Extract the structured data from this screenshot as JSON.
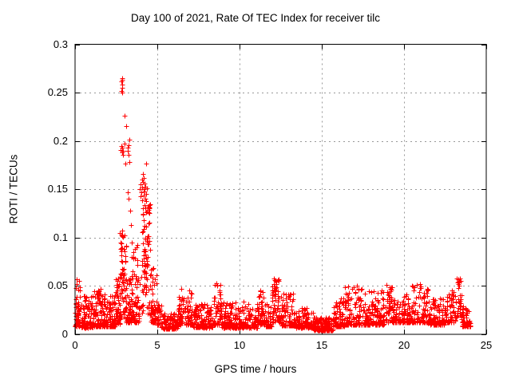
{
  "chart_data": {
    "type": "scatter",
    "title": "Day 100 of 2021, Rate Of TEC Index for receiver tilc",
    "xlabel": "GPS time / hours",
    "ylabel": "ROTI / TECUs",
    "xlim": [
      0,
      25
    ],
    "ylim": [
      0,
      0.3
    ],
    "xticks": [
      0,
      5,
      10,
      15,
      20,
      25
    ],
    "yticks": [
      0,
      0.05,
      0.1,
      0.15,
      0.2,
      0.25,
      0.3
    ],
    "ytick_labels": [
      "0",
      "0.05",
      "0.1",
      "0.15",
      "0.2",
      "0.25",
      "0.3"
    ],
    "xtick_labels": [
      "0",
      "5",
      "10",
      "15",
      "20",
      "25"
    ],
    "grid": "dashed gray at every labeled tick, mirrored inward tick marks on all four sides",
    "legend": "none",
    "marker": "plus",
    "marker_color": "#ff0000",
    "frame_color": "#000000",
    "grid_color": "#999999",
    "background_color": "#ffffff",
    "data_time_range_hours": [
      0,
      24.05
    ],
    "description": "Rate of TEC index vs GPS time; quiet background band ~0.005-0.05 TECU all day; strong ionospheric spike near 2.8-3.1 h peaking 0.265; secondary cluster 0.13-0.18 near 4.0-4.5 h; quietest period 14.5-15.7 h; small detached cluster ~0.05 near 23.3 h",
    "seed": 1337,
    "bands": [
      [
        0.0,
        0.35,
        60,
        0.008,
        0.052,
        2.0
      ],
      [
        0.35,
        1.15,
        110,
        0.007,
        0.04,
        2.4
      ],
      [
        1.15,
        1.75,
        85,
        0.008,
        0.046,
        2.2
      ],
      [
        1.35,
        1.55,
        12,
        0.03,
        0.052,
        1.3
      ],
      [
        1.75,
        2.45,
        100,
        0.008,
        0.044,
        2.4
      ],
      [
        2.45,
        2.75,
        55,
        0.01,
        0.058,
        1.8
      ],
      [
        2.7,
        3.1,
        55,
        0.015,
        0.108,
        1.2
      ],
      [
        3.1,
        3.95,
        100,
        0.012,
        0.058,
        1.8
      ],
      [
        3.4,
        4.0,
        12,
        0.05,
        0.096,
        1.2
      ],
      [
        4.05,
        4.6,
        80,
        0.02,
        0.135,
        1.0
      ],
      [
        4.6,
        5.0,
        55,
        0.012,
        0.07,
        1.7
      ],
      [
        5.0,
        5.25,
        28,
        0.01,
        0.034,
        2.0
      ],
      [
        5.25,
        6.25,
        115,
        0.006,
        0.022,
        2.0
      ],
      [
        6.25,
        6.65,
        45,
        0.01,
        0.048,
        1.9
      ],
      [
        6.65,
        7.15,
        55,
        0.01,
        0.046,
        2.2
      ],
      [
        7.15,
        8.4,
        135,
        0.007,
        0.032,
        2.2
      ],
      [
        8.4,
        8.9,
        60,
        0.01,
        0.054,
        2.2
      ],
      [
        8.9,
        11.1,
        230,
        0.007,
        0.034,
        2.5
      ],
      [
        11.1,
        11.5,
        45,
        0.01,
        0.046,
        2.0
      ],
      [
        11.5,
        11.95,
        45,
        0.008,
        0.032,
        2.2
      ],
      [
        11.95,
        12.45,
        60,
        0.012,
        0.058,
        1.5
      ],
      [
        12.45,
        13.45,
        105,
        0.009,
        0.042,
        2.3
      ],
      [
        13.45,
        14.5,
        115,
        0.007,
        0.027,
        2.3
      ],
      [
        14.5,
        15.7,
        140,
        0.004,
        0.018,
        2.0
      ],
      [
        15.2,
        15.45,
        40,
        0.006,
        0.014,
        1.5
      ],
      [
        15.7,
        16.4,
        80,
        0.008,
        0.038,
        2.2
      ],
      [
        16.4,
        17.5,
        115,
        0.01,
        0.05,
        2.3
      ],
      [
        17.5,
        18.9,
        150,
        0.01,
        0.046,
        2.4
      ],
      [
        18.9,
        19.3,
        45,
        0.012,
        0.052,
        2.0
      ],
      [
        19.3,
        20.5,
        125,
        0.012,
        0.042,
        2.2
      ],
      [
        20.5,
        21.45,
        95,
        0.012,
        0.052,
        2.3
      ],
      [
        21.45,
        22.45,
        105,
        0.01,
        0.038,
        2.3
      ],
      [
        22.45,
        23.15,
        75,
        0.012,
        0.046,
        2.0
      ],
      [
        23.15,
        23.5,
        25,
        0.018,
        0.042,
        1.5
      ],
      [
        23.22,
        23.45,
        9,
        0.046,
        0.058,
        1.0
      ],
      [
        23.5,
        24.05,
        60,
        0.008,
        0.03,
        2.3
      ]
    ],
    "key_points": [
      [
        2.82,
        0.262
      ],
      [
        2.84,
        0.265
      ],
      [
        2.86,
        0.258
      ],
      [
        2.88,
        0.263
      ],
      [
        2.85,
        0.255
      ],
      [
        2.83,
        0.252
      ],
      [
        2.87,
        0.25
      ],
      [
        3.0,
        0.226
      ],
      [
        3.1,
        0.215
      ],
      [
        2.78,
        0.191
      ],
      [
        2.81,
        0.195
      ],
      [
        2.84,
        0.188
      ],
      [
        2.87,
        0.193
      ],
      [
        2.9,
        0.19
      ],
      [
        2.93,
        0.186
      ],
      [
        3.02,
        0.197
      ],
      [
        3.18,
        0.193
      ],
      [
        3.22,
        0.19
      ],
      [
        3.26,
        0.186
      ],
      [
        3.28,
        0.201
      ],
      [
        3.24,
        0.196
      ],
      [
        3.05,
        0.177
      ],
      [
        3.3,
        0.178
      ],
      [
        4.3,
        0.177
      ],
      [
        3.2,
        0.147
      ],
      [
        3.26,
        0.14
      ],
      [
        3.35,
        0.128
      ],
      [
        3.4,
        0.113
      ],
      [
        2.85,
        0.107
      ],
      [
        2.9,
        0.101
      ],
      [
        2.82,
        0.094
      ],
      [
        2.95,
        0.088
      ],
      [
        2.8,
        0.082
      ],
      [
        2.88,
        0.075
      ],
      [
        2.97,
        0.068
      ],
      [
        2.83,
        0.062
      ],
      [
        3.45,
        0.095
      ],
      [
        3.55,
        0.085
      ],
      [
        3.65,
        0.078
      ],
      [
        3.75,
        0.09
      ],
      [
        3.5,
        0.065
      ],
      [
        3.7,
        0.06
      ],
      [
        3.8,
        0.072
      ],
      [
        3.85,
        0.058
      ],
      [
        3.95,
        0.15
      ],
      [
        3.98,
        0.143
      ],
      [
        4.0,
        0.155
      ],
      [
        4.03,
        0.147
      ],
      [
        4.06,
        0.16
      ],
      [
        4.08,
        0.152
      ],
      [
        4.11,
        0.166
      ],
      [
        4.13,
        0.158
      ],
      [
        4.16,
        0.15
      ],
      [
        4.18,
        0.144
      ],
      [
        4.21,
        0.156
      ],
      [
        4.23,
        0.148
      ],
      [
        4.26,
        0.14
      ],
      [
        4.28,
        0.153
      ],
      [
        4.31,
        0.145
      ],
      [
        4.33,
        0.138
      ],
      [
        4.09,
        0.139
      ],
      [
        4.19,
        0.162
      ],
      [
        4.36,
        0.151
      ],
      [
        4.24,
        0.134
      ],
      [
        4.11,
        0.13
      ],
      [
        4.14,
        0.124
      ],
      [
        4.17,
        0.118
      ],
      [
        4.21,
        0.112
      ],
      [
        4.09,
        0.106
      ],
      [
        4.25,
        0.1
      ],
      [
        4.12,
        0.094
      ],
      [
        4.23,
        0.088
      ],
      [
        4.16,
        0.082
      ],
      [
        4.07,
        0.076
      ],
      [
        4.28,
        0.07
      ],
      [
        4.2,
        0.064
      ],
      [
        0.08,
        0.057
      ],
      [
        0.12,
        0.052
      ],
      [
        0.22,
        0.055
      ],
      [
        0.05,
        0.048
      ],
      [
        6.45,
        0.047
      ],
      [
        8.58,
        0.053
      ],
      [
        8.62,
        0.05
      ],
      [
        11.28,
        0.045
      ],
      [
        12.08,
        0.058
      ],
      [
        12.12,
        0.056
      ],
      [
        12.1,
        0.052
      ],
      [
        12.15,
        0.048
      ],
      [
        16.42,
        0.049
      ],
      [
        17.12,
        0.05
      ],
      [
        18.92,
        0.051
      ],
      [
        20.98,
        0.052
      ],
      [
        21.03,
        0.048
      ],
      [
        23.28,
        0.057
      ],
      [
        23.32,
        0.054
      ],
      [
        23.36,
        0.05
      ],
      [
        23.3,
        0.048
      ]
    ]
  }
}
